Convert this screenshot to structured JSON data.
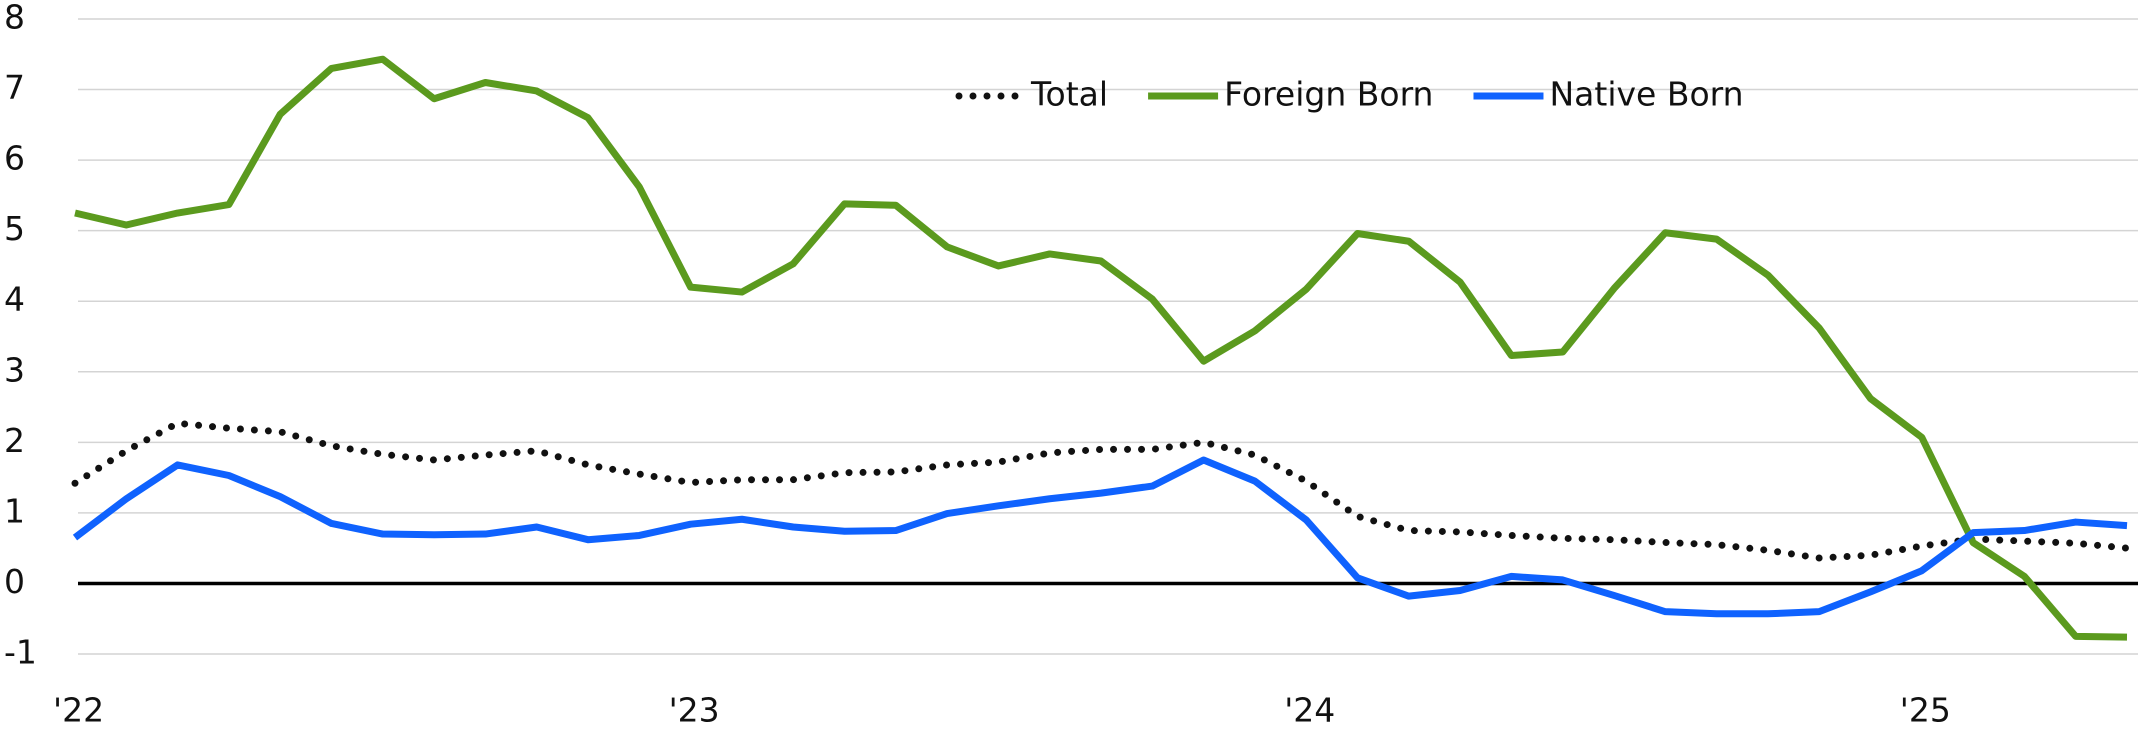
{
  "chart_data": {
    "type": "line",
    "categories": [
      "'22",
      null,
      null,
      null,
      null,
      null,
      null,
      null,
      null,
      null,
      null,
      null,
      "'23",
      null,
      null,
      null,
      null,
      null,
      null,
      null,
      null,
      null,
      null,
      null,
      "'24",
      null,
      null,
      null,
      null,
      null,
      null,
      null,
      null,
      null,
      null,
      null,
      "'25",
      null,
      null,
      null,
      null
    ],
    "series": [
      {
        "name": "Total",
        "color": "#111111",
        "style": "dotted",
        "values": [
          1.42,
          1.88,
          2.27,
          2.2,
          2.15,
          1.95,
          1.83,
          1.75,
          1.82,
          1.88,
          1.68,
          1.55,
          1.43,
          1.47,
          1.47,
          1.57,
          1.58,
          1.68,
          1.72,
          1.85,
          1.9,
          1.9,
          2.0,
          1.82,
          1.45,
          0.95,
          0.75,
          0.73,
          0.68,
          0.64,
          0.62,
          0.58,
          0.55,
          0.47,
          0.36,
          0.4,
          0.53,
          0.63,
          0.6,
          0.57,
          0.5
        ]
      },
      {
        "name": "Foreign Born",
        "color": "#5b9a1e",
        "style": "solid",
        "values": [
          5.25,
          5.08,
          5.25,
          5.37,
          6.65,
          7.3,
          7.43,
          6.87,
          7.1,
          6.98,
          6.6,
          5.62,
          4.2,
          4.13,
          4.53,
          5.38,
          5.36,
          4.77,
          4.5,
          4.67,
          4.57,
          4.03,
          3.15,
          3.58,
          4.17,
          4.96,
          4.85,
          4.27,
          3.23,
          3.28,
          4.18,
          4.97,
          4.88,
          4.37,
          3.62,
          2.62,
          2.07,
          0.58,
          0.1,
          -0.75,
          -0.76
        ]
      },
      {
        "name": "Native Born",
        "color": "#0f62fe",
        "style": "solid",
        "values": [
          0.65,
          1.2,
          1.68,
          1.53,
          1.23,
          0.85,
          0.7,
          0.69,
          0.7,
          0.8,
          0.62,
          0.68,
          0.84,
          0.91,
          0.8,
          0.74,
          0.75,
          0.99,
          1.1,
          1.2,
          1.28,
          1.38,
          1.75,
          1.45,
          0.9,
          0.08,
          -0.18,
          -0.1,
          0.1,
          0.05,
          -0.17,
          -0.4,
          -0.43,
          -0.43,
          -0.4,
          -0.12,
          0.18,
          0.72,
          0.75,
          0.87,
          0.82
        ]
      }
    ],
    "ylim": [
      -1,
      8
    ],
    "yticks": [
      -1,
      0,
      1,
      2,
      3,
      4,
      5,
      6,
      7,
      8
    ],
    "grid": true,
    "legend": "top"
  }
}
